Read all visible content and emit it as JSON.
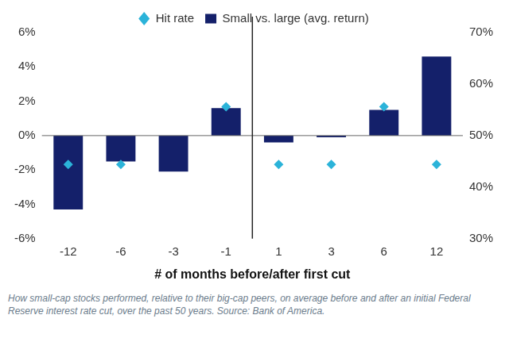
{
  "chart_data": {
    "type": "bar",
    "categories": [
      "-12",
      "-6",
      "-3",
      "-1",
      "1",
      "3",
      "6",
      "12"
    ],
    "x_label": "# of months before/after first cut",
    "caption": "How small-cap stocks performed, relative to their big-cap peers, on average before and after an initial Federal Reserve interest rate cut, over the past 50 years. Source: Bank of America.",
    "series": [
      {
        "name": "Small vs. large (avg. return)",
        "type": "bar",
        "color": "#14206a",
        "values": [
          -4.3,
          -1.5,
          -2.1,
          1.6,
          -0.4,
          -0.1,
          1.5,
          4.6
        ]
      },
      {
        "name": "Hit rate",
        "type": "scatter",
        "marker": "diamond",
        "color": "#2bb3d9",
        "axis": "y2",
        "values": [
          44.4,
          44.4,
          null,
          55.6,
          44.4,
          44.4,
          55.6,
          44.4
        ]
      }
    ],
    "ylim": [
      -6,
      6
    ],
    "yticks": [
      {
        "value": -6,
        "label": "-6%"
      },
      {
        "value": -4,
        "label": "-4%"
      },
      {
        "value": -2,
        "label": "-2%"
      },
      {
        "value": 0,
        "label": "0%"
      },
      {
        "value": 2,
        "label": "2%"
      },
      {
        "value": 4,
        "label": "4%"
      },
      {
        "value": 6,
        "label": "6%"
      }
    ],
    "y2lim": [
      30,
      70
    ],
    "y2ticks": [
      {
        "value": 30,
        "label": "30%"
      },
      {
        "value": 40,
        "label": "40%"
      },
      {
        "value": 50,
        "label": "50%"
      },
      {
        "value": 60,
        "label": "60%"
      },
      {
        "value": 70,
        "label": "70%"
      }
    ],
    "grid": false,
    "legend": "top"
  }
}
